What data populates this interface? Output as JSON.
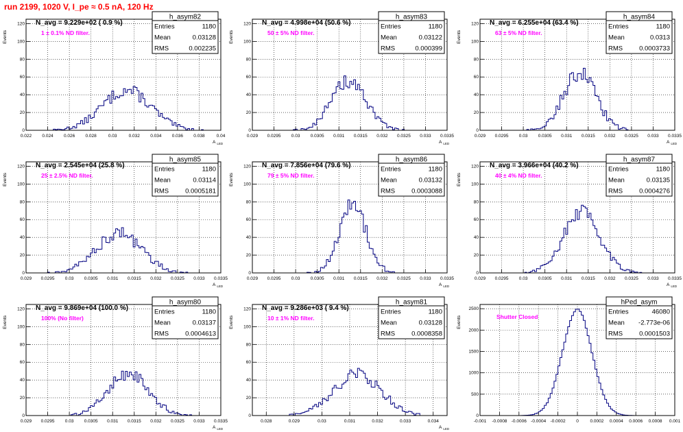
{
  "header": {
    "run_title": "run 2199,  1020 V, I_pe ≈ 0.5 nA, 120 Hz"
  },
  "colors": {
    "histogram": "#000080",
    "title": "#ff0000",
    "annotation": "#ff00ff",
    "grid": "#000000"
  },
  "chart_data": [
    {
      "type": "bar",
      "name": "h_asym82",
      "ylabel": "Events",
      "xlabel": "A_{LED}",
      "xlim": [
        0.022,
        0.04
      ],
      "ylim": [
        0,
        125
      ],
      "xticks": [
        0.022,
        0.024,
        0.026,
        0.028,
        0.03,
        0.032,
        0.034,
        0.036,
        0.038,
        0.04
      ],
      "xtick_labels": [
        "0.022",
        "0.024",
        "0.026",
        "0.028",
        "0.03",
        "0.032",
        "0.034",
        "0.036",
        "0.038",
        "0.04"
      ],
      "yticks": [
        0,
        20,
        40,
        60,
        80,
        100,
        120
      ],
      "ytick_labels": [
        "0",
        "20",
        "40",
        "60",
        "80",
        "100",
        "120"
      ],
      "navg": "N_avg = 9.229e+02 ( 0.9 %)",
      "filter": "1 ± 0.1% ND filter.",
      "stats": {
        "title": "h_asym82",
        "rows": [
          [
            "Entries",
            "1180"
          ],
          [
            "Mean",
            "0.03128"
          ],
          [
            "RMS",
            "0.002235"
          ]
        ]
      },
      "mean": 0.03128,
      "rms": 0.002235,
      "peak": 45,
      "nbins": 100
    },
    {
      "type": "bar",
      "name": "h_asym83",
      "ylabel": "Events",
      "xlabel": "A_{LED}",
      "xlim": [
        0.029,
        0.0335
      ],
      "ylim": [
        0,
        125
      ],
      "xticks": [
        0.029,
        0.0295,
        0.03,
        0.0305,
        0.031,
        0.0315,
        0.032,
        0.0325,
        0.033,
        0.0335
      ],
      "xtick_labels": [
        "0.029",
        "0.0295",
        "0.03",
        "0.0305",
        "0.031",
        "0.0315",
        "0.032",
        "0.0325",
        "0.033",
        "0.0335"
      ],
      "yticks": [
        0,
        20,
        40,
        60,
        80,
        100,
        120
      ],
      "ytick_labels": [
        "0",
        "20",
        "40",
        "60",
        "80",
        "100",
        "120"
      ],
      "navg": "N_avg = 4.998e+04 (50.6 %)",
      "filter": "50 ± 5% ND filter.",
      "stats": {
        "title": "h_asym83",
        "rows": [
          [
            "Entries",
            "1180"
          ],
          [
            "Mean",
            "0.03122"
          ],
          [
            "RMS",
            "0.000399"
          ]
        ]
      },
      "mean": 0.03122,
      "rms": 0.000399,
      "peak": 55,
      "nbins": 100
    },
    {
      "type": "bar",
      "name": "h_asym84",
      "ylabel": "Events",
      "xlabel": "A_{LED}",
      "xlim": [
        0.029,
        0.0335
      ],
      "ylim": [
        0,
        125
      ],
      "xticks": [
        0.029,
        0.0295,
        0.03,
        0.0305,
        0.031,
        0.0315,
        0.032,
        0.0325,
        0.033,
        0.0335
      ],
      "xtick_labels": [
        "0.029",
        "0.0295",
        "0.03",
        "0.0305",
        "0.031",
        "0.0315",
        "0.032",
        "0.0325",
        "0.033",
        "0.0335"
      ],
      "yticks": [
        0,
        20,
        40,
        60,
        80,
        100,
        120
      ],
      "ytick_labels": [
        "0",
        "20",
        "40",
        "60",
        "80",
        "100",
        "120"
      ],
      "navg": "N_avg = 6.255e+04 (63.4 %)",
      "filter": "63 ± 5% ND filter.",
      "stats": {
        "title": "h_asym84",
        "rows": [
          [
            "Entries",
            "1180"
          ],
          [
            "Mean",
            "0.0313"
          ],
          [
            "RMS",
            "0.0003733"
          ]
        ]
      },
      "mean": 0.0313,
      "rms": 0.0003733,
      "peak": 65,
      "nbins": 100
    },
    {
      "type": "bar",
      "name": "h_asym85",
      "ylabel": "Events",
      "xlabel": "A_{LED}",
      "xlim": [
        0.029,
        0.0335
      ],
      "ylim": [
        0,
        125
      ],
      "xticks": [
        0.029,
        0.0295,
        0.03,
        0.0305,
        0.031,
        0.0315,
        0.032,
        0.0325,
        0.033,
        0.0335
      ],
      "xtick_labels": [
        "0.029",
        "0.0295",
        "0.03",
        "0.0305",
        "0.031",
        "0.0315",
        "0.032",
        "0.0325",
        "0.033",
        "0.0335"
      ],
      "yticks": [
        0,
        20,
        40,
        60,
        80,
        100,
        120
      ],
      "ytick_labels": [
        "0",
        "20",
        "40",
        "60",
        "80",
        "100",
        "120"
      ],
      "navg": "N_avg = 2.545e+04 (25.8 %)",
      "filter": "25 ± 2.5% ND filter.",
      "stats": {
        "title": "h_asym85",
        "rows": [
          [
            "Entries",
            "1180"
          ],
          [
            "Mean",
            "0.03114"
          ],
          [
            "RMS",
            "0.0005181"
          ]
        ]
      },
      "mean": 0.03114,
      "rms": 0.0005181,
      "peak": 45,
      "nbins": 100
    },
    {
      "type": "bar",
      "name": "h_asym86",
      "ylabel": "Events",
      "xlabel": "A_{LED}",
      "xlim": [
        0.029,
        0.0335
      ],
      "ylim": [
        0,
        125
      ],
      "xticks": [
        0.029,
        0.0295,
        0.03,
        0.0305,
        0.031,
        0.0315,
        0.032,
        0.0325,
        0.033,
        0.0335
      ],
      "xtick_labels": [
        "0.029",
        "0.0295",
        "0.03",
        "0.0305",
        "0.031",
        "0.0315",
        "0.032",
        "0.0325",
        "0.033",
        "0.0335"
      ],
      "yticks": [
        0,
        20,
        40,
        60,
        80,
        100,
        120
      ],
      "ytick_labels": [
        "0",
        "20",
        "40",
        "60",
        "80",
        "100",
        "120"
      ],
      "navg": "N_avg = 7.856e+04 (79.6 %)",
      "filter": "79 ± 5% ND filter.",
      "stats": {
        "title": "h_asym86",
        "rows": [
          [
            "Entries",
            "1180"
          ],
          [
            "Mean",
            "0.03132"
          ],
          [
            "RMS",
            "0.0003088"
          ]
        ]
      },
      "mean": 0.03132,
      "rms": 0.0003088,
      "peak": 78,
      "nbins": 100
    },
    {
      "type": "bar",
      "name": "h_asym87",
      "ylabel": "Events",
      "xlabel": "A_{LED}",
      "xlim": [
        0.029,
        0.0335
      ],
      "ylim": [
        0,
        125
      ],
      "xticks": [
        0.029,
        0.0295,
        0.03,
        0.0305,
        0.031,
        0.0315,
        0.032,
        0.0325,
        0.033,
        0.0335
      ],
      "xtick_labels": [
        "0.029",
        "0.0295",
        "0.03",
        "0.0305",
        "0.031",
        "0.0315",
        "0.032",
        "0.0325",
        "0.033",
        "0.0335"
      ],
      "yticks": [
        0,
        20,
        40,
        60,
        80,
        100,
        120
      ],
      "ytick_labels": [
        "0",
        "20",
        "40",
        "60",
        "80",
        "100",
        "120"
      ],
      "navg": "N_avg = 3.966e+04 (40.2 %)",
      "filter": "40 ± 4% ND filter.",
      "stats": {
        "title": "h_asym87",
        "rows": [
          [
            "Entries",
            "1180"
          ],
          [
            "Mean",
            "0.03135"
          ],
          [
            "RMS",
            "0.0004276"
          ]
        ]
      },
      "mean": 0.03135,
      "rms": 0.0004276,
      "peak": 68,
      "nbins": 100
    },
    {
      "type": "bar",
      "name": "h_asym80",
      "ylabel": "Events",
      "xlabel": "A_{LED}",
      "xlim": [
        0.029,
        0.0335
      ],
      "ylim": [
        0,
        125
      ],
      "xticks": [
        0.029,
        0.0295,
        0.03,
        0.0305,
        0.031,
        0.0315,
        0.032,
        0.0325,
        0.033,
        0.0335
      ],
      "xtick_labels": [
        "0.029",
        "0.0295",
        "0.03",
        "0.0305",
        "0.031",
        "0.0315",
        "0.032",
        "0.0325",
        "0.033",
        "0.0335"
      ],
      "yticks": [
        0,
        20,
        40,
        60,
        80,
        100,
        120
      ],
      "ytick_labels": [
        "0",
        "20",
        "40",
        "60",
        "80",
        "100",
        "120"
      ],
      "navg": "N_avg = 9.869e+04 (100.0 %)",
      "filter": "100% (No filter)",
      "stats": {
        "title": "h_asym80",
        "rows": [
          [
            "Entries",
            "1180"
          ],
          [
            "Mean",
            "0.03137"
          ],
          [
            "RMS",
            "0.0004613"
          ]
        ]
      },
      "mean": 0.03137,
      "rms": 0.0004613,
      "peak": 48,
      "nbins": 100
    },
    {
      "type": "bar",
      "name": "h_asym81",
      "ylabel": "Events",
      "xlabel": "A_{LED}",
      "xlim": [
        0.0275,
        0.0345
      ],
      "ylim": [
        0,
        125
      ],
      "xticks": [
        0.028,
        0.029,
        0.03,
        0.031,
        0.032,
        0.033,
        0.034
      ],
      "xtick_labels": [
        "0.028",
        "0.029",
        "0.03",
        "0.031",
        "0.032",
        "0.033",
        "0.034"
      ],
      "yticks": [
        0,
        20,
        40,
        60,
        80,
        100,
        120
      ],
      "ytick_labels": [
        "0",
        "20",
        "40",
        "60",
        "80",
        "100",
        "120"
      ],
      "navg": "N_avg = 9.286e+03 ( 9.4 %)",
      "filter": "10 ± 1% ND filter.",
      "stats": {
        "title": "h_asym81",
        "rows": [
          [
            "Entries",
            "1180"
          ],
          [
            "Mean",
            "0.03128"
          ],
          [
            "RMS",
            "0.0008358"
          ]
        ]
      },
      "mean": 0.03128,
      "rms": 0.0008358,
      "peak": 47,
      "nbins": 100
    },
    {
      "type": "bar",
      "name": "hPed_asym",
      "ylabel": "Events",
      "xlabel": "",
      "xlim": [
        -0.001,
        0.001
      ],
      "ylim": [
        0,
        2600
      ],
      "xticks": [
        -0.001,
        -0.0008,
        -0.0006,
        -0.0004,
        -0.0002,
        0,
        0.0002,
        0.0004,
        0.0006,
        0.0008,
        0.001
      ],
      "xtick_labels": [
        "-0.001",
        "-0.0008",
        "-0.0006",
        "-0.0004",
        "-0.0002",
        "0",
        "0.0002",
        "0.0004",
        "0.0006",
        "0.0008",
        "0.001"
      ],
      "yticks": [
        0,
        500,
        1000,
        1500,
        2000,
        2500
      ],
      "ytick_labels": [
        "0",
        "500",
        "1000",
        "1500",
        "2000",
        "2500"
      ],
      "navg": "",
      "filter": "Shutter Closed",
      "stats": {
        "title": "hPed_asym",
        "rows": [
          [
            "Entries",
            "46080"
          ],
          [
            "Mean",
            "-2.773e-06"
          ],
          [
            "RMS",
            "0.0001503"
          ]
        ]
      },
      "mean": -2.773e-06,
      "rms": 0.0001503,
      "peak": 2480,
      "nbins": 100
    }
  ]
}
